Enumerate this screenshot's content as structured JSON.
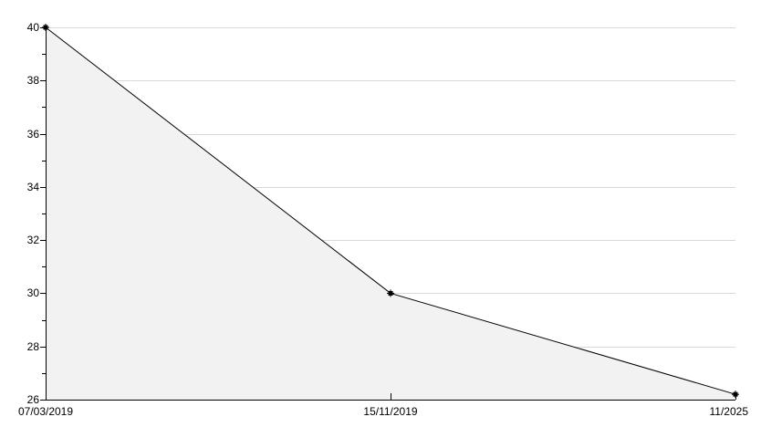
{
  "chart_data": {
    "type": "area",
    "title": "",
    "xlabel": "",
    "ylabel": "",
    "categories": [
      "07/03/2019",
      "15/11/2019",
      "11/2025"
    ],
    "series": [
      {
        "name": "value",
        "values": [
          40,
          30,
          26.2
        ]
      }
    ],
    "ylim": [
      26,
      40
    ],
    "y_major_step": 2,
    "y_minor_step": 1,
    "y_tick_labels": [
      "26",
      "28",
      "30",
      "32",
      "34",
      "36",
      "38",
      "40"
    ],
    "grid": "horizontal major gridlines, hidden beneath area fill",
    "legend": "none",
    "marker": "small black square with cross spurs at each data point",
    "colors": {
      "line": "#000000",
      "area_fill": "#f2f2f2",
      "grid": "#d9d9d9",
      "axis": "#000000",
      "text": "#000000",
      "background": "#ffffff"
    }
  }
}
